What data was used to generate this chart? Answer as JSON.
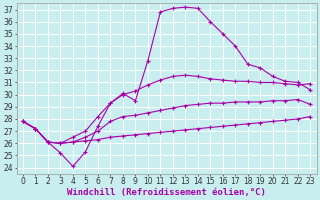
{
  "xlabel": "Windchill (Refroidissement éolien,°C)",
  "bg_color": "#c8eef0",
  "grid_color": "#ffffff",
  "line_color": "#aa00aa",
  "xlim": [
    -0.5,
    23.5
  ],
  "ylim": [
    23.5,
    37.5
  ],
  "xticks": [
    0,
    1,
    2,
    3,
    4,
    5,
    6,
    7,
    8,
    9,
    10,
    11,
    12,
    13,
    14,
    15,
    16,
    17,
    18,
    19,
    20,
    21,
    22,
    23
  ],
  "yticks": [
    24,
    25,
    26,
    27,
    28,
    29,
    30,
    31,
    32,
    33,
    34,
    35,
    36,
    37
  ],
  "line1_x": [
    0,
    1,
    2,
    3,
    4,
    5,
    6,
    7,
    8,
    9,
    10,
    11,
    12,
    13,
    14,
    15,
    16,
    17,
    18,
    19,
    20,
    21,
    22,
    23
  ],
  "line1_y": [
    27.8,
    27.2,
    26.1,
    25.2,
    24.1,
    25.3,
    27.4,
    29.3,
    30.1,
    29.5,
    32.8,
    36.8,
    37.1,
    37.2,
    37.1,
    36.0,
    35.0,
    34.0,
    32.5,
    32.2,
    31.5,
    31.1,
    31.0,
    30.4
  ],
  "line2_x": [
    0,
    1,
    2,
    3,
    4,
    5,
    6,
    7,
    8,
    9,
    10,
    11,
    12,
    13,
    14,
    15,
    16,
    17,
    18,
    19,
    20,
    21,
    22,
    23
  ],
  "line2_y": [
    27.8,
    27.2,
    26.1,
    26.0,
    26.5,
    27.0,
    28.2,
    29.3,
    30.0,
    30.3,
    30.8,
    31.2,
    31.5,
    31.6,
    31.5,
    31.3,
    31.2,
    31.1,
    31.1,
    31.0,
    31.0,
    30.9,
    30.8,
    30.9
  ],
  "line3_x": [
    0,
    1,
    2,
    3,
    4,
    5,
    6,
    7,
    8,
    9,
    10,
    11,
    12,
    13,
    14,
    15,
    16,
    17,
    18,
    19,
    20,
    21,
    22,
    23
  ],
  "line3_y": [
    27.8,
    27.2,
    26.1,
    26.0,
    26.1,
    26.5,
    27.0,
    27.8,
    28.2,
    28.3,
    28.5,
    28.7,
    28.9,
    29.1,
    29.2,
    29.3,
    29.3,
    29.4,
    29.4,
    29.4,
    29.5,
    29.5,
    29.6,
    29.2
  ],
  "line4_x": [
    0,
    1,
    2,
    3,
    4,
    5,
    6,
    7,
    8,
    9,
    10,
    11,
    12,
    13,
    14,
    15,
    16,
    17,
    18,
    19,
    20,
    21,
    22,
    23
  ],
  "line4_y": [
    27.8,
    27.2,
    26.1,
    26.0,
    26.1,
    26.2,
    26.3,
    26.5,
    26.6,
    26.7,
    26.8,
    26.9,
    27.0,
    27.1,
    27.2,
    27.3,
    27.4,
    27.5,
    27.6,
    27.7,
    27.8,
    27.9,
    28.0,
    28.2
  ],
  "xlabel_fontsize": 6.5,
  "tick_fontsize": 5.5,
  "xlabel_color": "#aa00aa",
  "xlabel_bold": true
}
